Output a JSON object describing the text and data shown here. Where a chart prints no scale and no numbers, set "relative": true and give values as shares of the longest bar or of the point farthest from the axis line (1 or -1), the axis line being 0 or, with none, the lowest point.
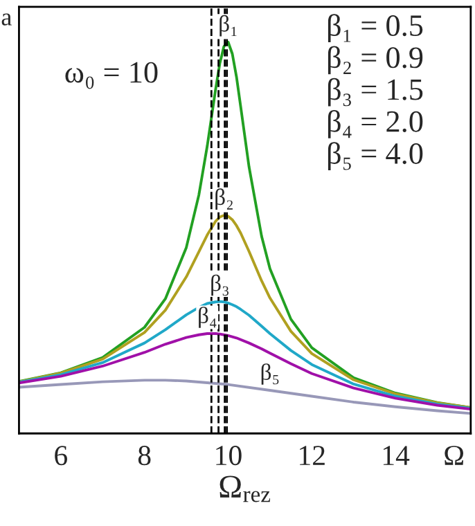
{
  "chart_data": {
    "type": "line",
    "relative": true,
    "xlabel": "Ω$_{rez}$",
    "xlim": [
      5,
      15.8
    ],
    "xticks": [
      6,
      8,
      10,
      12,
      14,
      {
        "value": 15.4,
        "label": "Ω"
      }
    ],
    "grid": false,
    "legend": false,
    "marker": "none",
    "line_style": "solid",
    "series": [
      {
        "color": "#22a022",
        "x": [
          5,
          6,
          7,
          8,
          8.5,
          9,
          9.3,
          9.5,
          9.7,
          9.8,
          9.9,
          10,
          10.1,
          10.2,
          10.3,
          10.5,
          10.8,
          11,
          11.5,
          12,
          13,
          14,
          15,
          15.8
        ],
        "values": [
          0.133,
          0.155,
          0.194,
          0.271,
          0.344,
          0.475,
          0.609,
          0.734,
          0.879,
          0.945,
          0.989,
          1.0,
          0.97,
          0.911,
          0.835,
          0.681,
          0.504,
          0.421,
          0.292,
          0.219,
          0.142,
          0.103,
          0.079,
          0.066
        ]
      },
      {
        "color": "#b0a020",
        "x": [
          5,
          6,
          7,
          8,
          8.5,
          9,
          9.3,
          9.5,
          9.7,
          9.8,
          9.9,
          10,
          10.1,
          10.2,
          10.3,
          10.5,
          10.8,
          11,
          11.5,
          12,
          13,
          14,
          15,
          15.8
        ],
        "values": [
          0.132,
          0.154,
          0.19,
          0.258,
          0.315,
          0.4,
          0.464,
          0.507,
          0.542,
          0.553,
          0.557,
          0.555,
          0.546,
          0.531,
          0.512,
          0.465,
          0.39,
          0.346,
          0.261,
          0.204,
          0.137,
          0.101,
          0.078,
          0.066
        ]
      },
      {
        "color": "#20a8c8",
        "x": [
          5,
          6,
          7,
          8,
          8.5,
          9,
          9.3,
          9.5,
          9.7,
          9.8,
          9.9,
          10,
          10.1,
          10.2,
          10.3,
          10.5,
          10.8,
          11,
          11.5,
          12,
          13,
          14,
          15,
          15.8
        ],
        "values": [
          0.131,
          0.15,
          0.181,
          0.231,
          0.265,
          0.303,
          0.322,
          0.332,
          0.336,
          0.337,
          0.336,
          0.333,
          0.329,
          0.324,
          0.317,
          0.302,
          0.274,
          0.255,
          0.212,
          0.176,
          0.126,
          0.095,
          0.075,
          0.064
        ]
      },
      {
        "color": "#a010a8",
        "x": [
          5,
          6,
          7,
          8,
          8.5,
          9,
          9.3,
          9.5,
          9.7,
          9.8,
          9.9,
          10,
          10.2,
          10.5,
          10.8,
          11,
          11.5,
          12,
          13,
          14,
          15,
          15.8
        ],
        "values": [
          0.129,
          0.146,
          0.172,
          0.207,
          0.228,
          0.245,
          0.252,
          0.255,
          0.255,
          0.254,
          0.252,
          0.25,
          0.244,
          0.231,
          0.216,
          0.205,
          0.178,
          0.153,
          0.116,
          0.09,
          0.072,
          0.062
        ]
      },
      {
        "color": "#9898b8",
        "x": [
          5,
          6,
          7,
          8,
          8.5,
          9,
          10,
          11,
          12,
          13,
          14,
          15,
          15.8
        ],
        "values": [
          0.118,
          0.125,
          0.132,
          0.136,
          0.136,
          0.134,
          0.125,
          0.11,
          0.095,
          0.08,
          0.068,
          0.058,
          0.051
        ]
      }
    ],
    "ref_lines": [
      {
        "axis": "x",
        "value": 9.6,
        "color": "#000000",
        "line_style": "dashed"
      },
      {
        "axis": "x",
        "value": 9.77,
        "color": "#000000",
        "line_style": "dashed"
      },
      {
        "axis": "x",
        "value": 9.92,
        "color": "#000000",
        "line_style": "dashed"
      },
      {
        "axis": "x",
        "value": 9.97,
        "color": "#000000",
        "line_style": "dashed"
      }
    ],
    "annotations": [
      "a",
      "ω₀ = 10",
      "β₁ = 0.5",
      "β₂ = 0.9",
      "β₃ = 1.5",
      "β₄ = 2.0",
      "β₅ = 4.0",
      {
        "text": "β₁",
        "x": 10,
        "y": 1.0
      },
      {
        "text": "β₂",
        "x": 9.9,
        "y": 0.557
      },
      {
        "text": "β₃",
        "x": 9.8,
        "y": 0.337
      },
      {
        "text": "β₄",
        "x": 9.5,
        "y": 0.255
      },
      {
        "text": "β₅",
        "x": 11,
        "y": 0.11
      }
    ]
  }
}
